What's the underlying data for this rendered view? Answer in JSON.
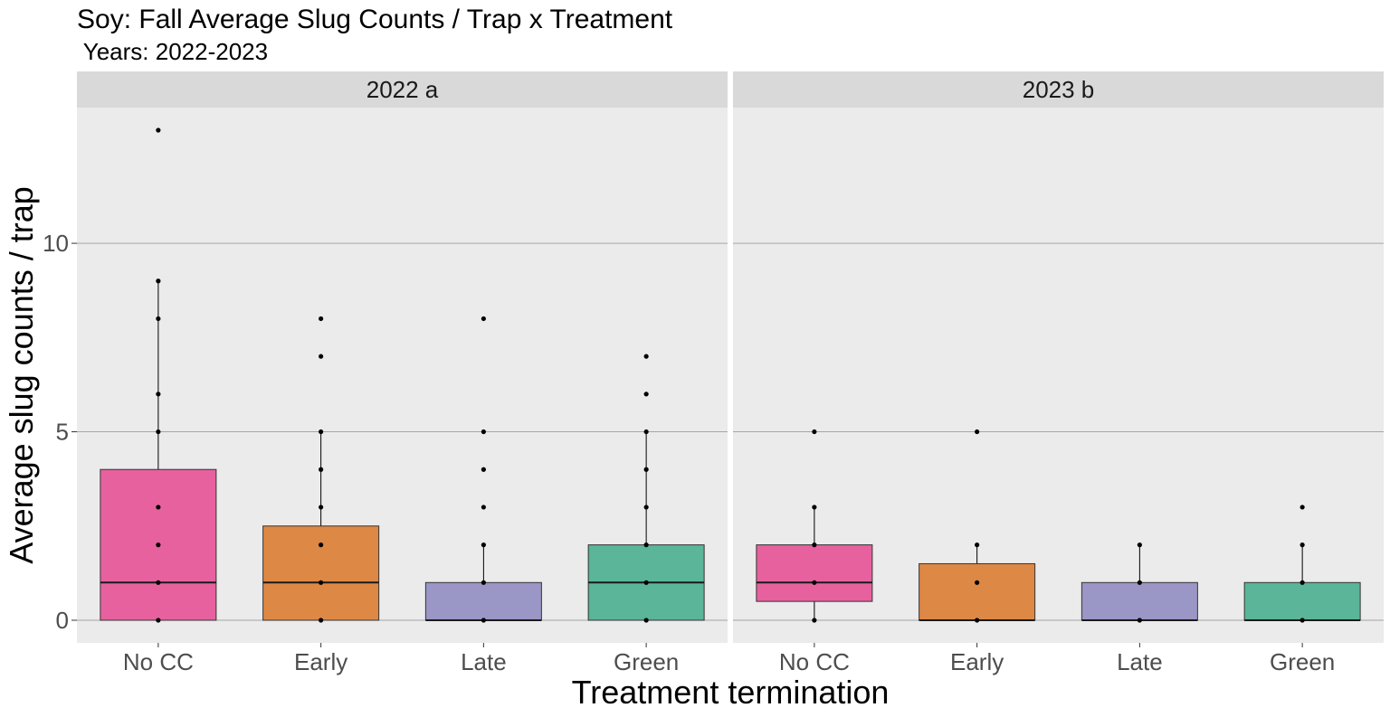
{
  "chart_data": {
    "type": "box",
    "title": "Soy: Fall Average Slug Counts / Trap x Treatment",
    "subtitle": " Years: 2022-2023",
    "xlabel": "Treatment termination",
    "ylabel": "Average slug counts / trap",
    "ylim": [
      -0.6,
      13.6
    ],
    "yticks": [
      0,
      5,
      10
    ],
    "grid": true,
    "categories": [
      "No CC",
      "Early",
      "Late",
      "Green"
    ],
    "colors": [
      "#E7619F",
      "#DE8845",
      "#9A96C6",
      "#5AB599"
    ],
    "panels": [
      {
        "label": "2022 a",
        "boxes": [
          {
            "category": "No CC",
            "q1": 0,
            "median": 1,
            "q3": 4,
            "whisker_low": 0,
            "whisker_high": 9,
            "points": [
              0,
              1,
              2,
              3,
              5,
              6,
              8,
              9,
              13
            ]
          },
          {
            "category": "Early",
            "q1": 0,
            "median": 1,
            "q3": 2.5,
            "whisker_low": 0,
            "whisker_high": 5,
            "points": [
              0,
              1,
              2,
              3,
              4,
              5,
              7,
              8
            ]
          },
          {
            "category": "Late",
            "q1": 0,
            "median": 0,
            "q3": 1,
            "whisker_low": 0,
            "whisker_high": 2,
            "points": [
              0,
              1,
              2,
              3,
              4,
              5,
              8
            ]
          },
          {
            "category": "Green",
            "q1": 0,
            "median": 1,
            "q3": 2,
            "whisker_low": 0,
            "whisker_high": 5,
            "points": [
              0,
              1,
              2,
              3,
              4,
              5,
              6,
              7
            ]
          }
        ]
      },
      {
        "label": "2023 b",
        "boxes": [
          {
            "category": "No CC",
            "q1": 0.5,
            "median": 1,
            "q3": 2,
            "whisker_low": 0,
            "whisker_high": 3,
            "points": [
              0,
              1,
              2,
              3,
              5
            ]
          },
          {
            "category": "Early",
            "q1": 0,
            "median": 0,
            "q3": 1.5,
            "whisker_low": 0,
            "whisker_high": 2,
            "points": [
              0,
              1,
              2,
              5
            ]
          },
          {
            "category": "Late",
            "q1": 0,
            "median": 0,
            "q3": 1,
            "whisker_low": 0,
            "whisker_high": 2,
            "points": [
              0,
              1,
              2
            ]
          },
          {
            "category": "Green",
            "q1": 0,
            "median": 0,
            "q3": 1,
            "whisker_low": 0,
            "whisker_high": 2,
            "points": [
              0,
              1,
              2,
              3
            ]
          }
        ]
      }
    ]
  }
}
